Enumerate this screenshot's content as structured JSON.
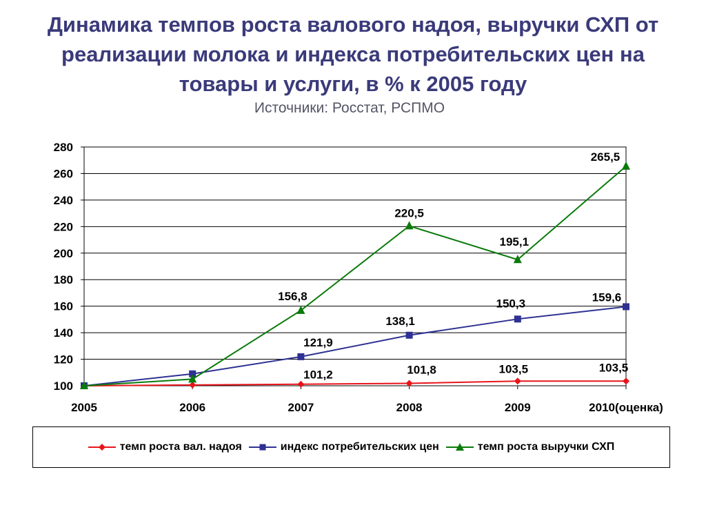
{
  "title_lines": [
    "Динамика темпов роста валового надоя, выручки СХП от",
    "реализации молока и индекса потребительских цен на",
    "товары и услуги, в % к 2005 году"
  ],
  "subtitle": "Источники: Росстат, РСПМО",
  "chart_data": {
    "type": "line",
    "categories": [
      "2005",
      "2006",
      "2007",
      "2008",
      "2009",
      "2010(оценка)"
    ],
    "ylim": [
      100,
      280
    ],
    "yticks": [
      100,
      120,
      140,
      160,
      180,
      200,
      220,
      240,
      260,
      280
    ],
    "grid": true,
    "legend_position": "bottom",
    "series": [
      {
        "name": "темп роста вал. надоя",
        "color": "#e8141b",
        "marker": "diamond",
        "values": [
          100,
          100.6,
          101.2,
          101.8,
          103.5,
          103.5
        ],
        "labels": [
          "",
          "",
          "101,2",
          "101,8",
          "103,5",
          "103,5"
        ]
      },
      {
        "name": "индекс потребительских цен",
        "color": "#2e3192",
        "marker": "square",
        "values": [
          100,
          109,
          121.9,
          138.1,
          150.3,
          159.6
        ],
        "labels": [
          "",
          "",
          "121,9",
          "138,1",
          "150,3",
          "159,6"
        ]
      },
      {
        "name": "темп роста выручки СХП",
        "color": "#0a7a0a",
        "marker": "triangle",
        "values": [
          100,
          105,
          156.8,
          220.5,
          195.1,
          265.5
        ],
        "labels": [
          "",
          "",
          "156,8",
          "220,5",
          "195,1",
          "265,5"
        ]
      }
    ]
  }
}
